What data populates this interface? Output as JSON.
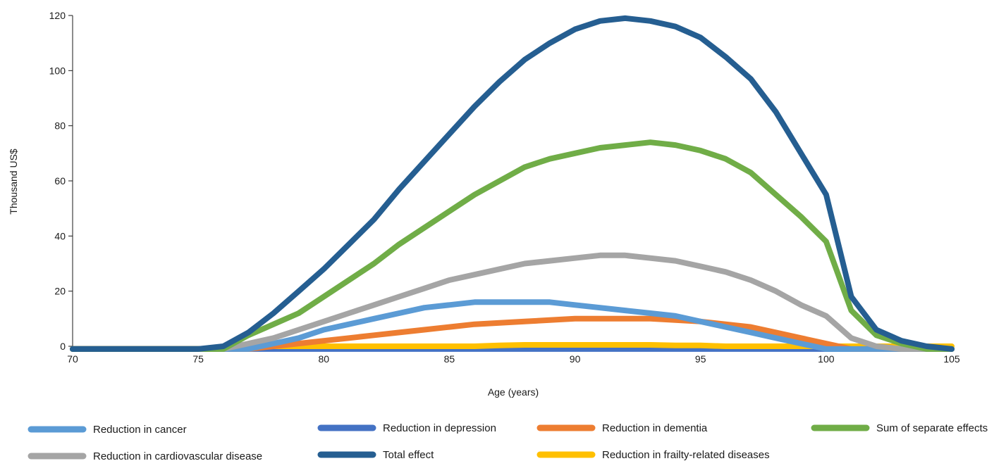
{
  "chart_data": {
    "type": "line",
    "xlabel": "Age (years)",
    "ylabel": "Thousand US$",
    "xlim": [
      70,
      105
    ],
    "ylim": [
      0,
      120
    ],
    "x_ticks": [
      70,
      75,
      80,
      85,
      90,
      95,
      100,
      105
    ],
    "y_ticks": [
      0,
      20,
      40,
      60,
      80,
      100,
      120
    ],
    "grid": false,
    "legend_position": "bottom",
    "x": [
      70,
      71,
      72,
      73,
      74,
      75,
      76,
      77,
      78,
      79,
      80,
      81,
      82,
      83,
      84,
      85,
      86,
      87,
      88,
      89,
      90,
      91,
      92,
      93,
      94,
      95,
      96,
      97,
      98,
      99,
      100,
      101,
      102,
      103,
      104,
      105
    ],
    "series": [
      {
        "name": "Reduction in cancer",
        "color": "#5b9bd5",
        "values": [
          -1,
          -1,
          -1,
          -1,
          -1,
          -1,
          -1,
          -1,
          1,
          3,
          6,
          8,
          10,
          12,
          14,
          15,
          16,
          16,
          16,
          16,
          15,
          14,
          13,
          12,
          11,
          9,
          7,
          5,
          3,
          1,
          -1,
          -1,
          -1,
          -1,
          -1,
          -1
        ]
      },
      {
        "name": "Reduction in depression",
        "color": "#4472c4",
        "values": [
          -1,
          -1,
          -1,
          -1,
          -1,
          -1,
          -1,
          -1,
          -1,
          -1,
          -1,
          -1,
          -1,
          -1,
          -1,
          -1,
          -1,
          -1,
          -1,
          -1,
          -1,
          -1,
          -1,
          -1,
          -1,
          -1,
          -1,
          -1,
          -1,
          -1,
          -1,
          -1,
          -1,
          -1,
          -1,
          -1
        ]
      },
      {
        "name": "Reduction in dementia",
        "color": "#ed7d31",
        "values": [
          -1,
          -1,
          -1,
          -1,
          -1,
          -1,
          -1,
          -1,
          0,
          1,
          2,
          3,
          4,
          5,
          6,
          7,
          8,
          8.5,
          9,
          9.5,
          10,
          10,
          10,
          10,
          9.5,
          9,
          8,
          7,
          5,
          3,
          1,
          -1,
          -1,
          -1,
          -1,
          -1
        ]
      },
      {
        "name": "Sum of separate effects",
        "color": "#70ad47",
        "values": [
          -1,
          -1,
          -1,
          -1,
          -1,
          -1,
          -1,
          4,
          8,
          12,
          18,
          24,
          30,
          37,
          43,
          49,
          55,
          60,
          65,
          68,
          70,
          72,
          73,
          74,
          73,
          71,
          68,
          63,
          55,
          47,
          38,
          13,
          4,
          1,
          -1,
          -1
        ]
      },
      {
        "name": "Reduction in cardiovascular disease",
        "color": "#a5a5a5",
        "values": [
          -1,
          -1,
          -1,
          -1,
          -1,
          -1,
          -1,
          1,
          3,
          6,
          9,
          12,
          15,
          18,
          21,
          24,
          26,
          28,
          30,
          31,
          32,
          33,
          33,
          32,
          31,
          29,
          27,
          24,
          20,
          15,
          11,
          3,
          0,
          -1,
          -1,
          -1
        ]
      },
      {
        "name": "Total effect",
        "color": "#255e91",
        "values": [
          -1,
          -1,
          -1,
          -1,
          -1,
          -1,
          0,
          5,
          12,
          20,
          28,
          37,
          46,
          57,
          67,
          77,
          87,
          96,
          104,
          110,
          115,
          118,
          119,
          118,
          116,
          112,
          105,
          97,
          85,
          70,
          55,
          18,
          6,
          2,
          0,
          -1
        ]
      },
      {
        "name": "Reduction in frailty-related diseases",
        "color": "#ffc000",
        "values": [
          -1,
          -1,
          -1,
          -1,
          -1,
          -1,
          -1,
          0,
          0,
          0,
          0,
          0,
          0,
          0,
          0,
          0,
          0,
          0.3,
          0.5,
          0.5,
          0.5,
          0.5,
          0.5,
          0.5,
          0.3,
          0.3,
          0,
          0,
          0,
          0,
          0,
          0,
          0,
          0,
          0,
          0
        ]
      }
    ]
  }
}
